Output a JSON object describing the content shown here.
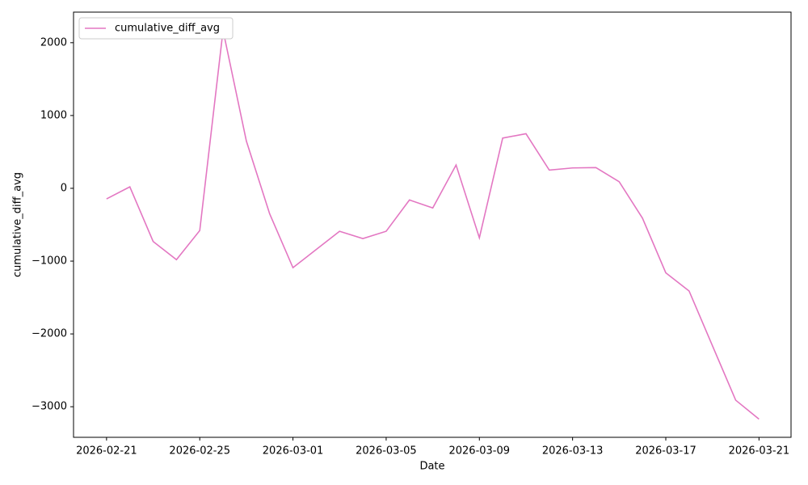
{
  "chart_data": {
    "type": "line",
    "x_label": "Date",
    "y_label": "cumulative_diff_avg",
    "x": [
      "2026-02-21",
      "2026-02-22",
      "2026-02-23",
      "2026-02-24",
      "2026-02-25",
      "2026-02-26",
      "2026-02-27",
      "2026-02-28",
      "2026-03-01",
      "2026-03-02",
      "2026-03-03",
      "2026-03-04",
      "2026-03-05",
      "2026-03-06",
      "2026-03-07",
      "2026-03-08",
      "2026-03-09",
      "2026-03-10",
      "2026-03-11",
      "2026-03-12",
      "2026-03-13",
      "2026-03-14",
      "2026-03-15",
      "2026-03-16",
      "2026-03-17",
      "2026-03-18",
      "2026-03-19",
      "2026-03-20",
      "2026-03-21"
    ],
    "series": [
      {
        "name": "cumulative_diff_avg",
        "color": "#e377c2",
        "values": [
          -145,
          20,
          -730,
          -980,
          -580,
          2170,
          650,
          -350,
          -1090,
          -840,
          -590,
          -690,
          -590,
          -160,
          -270,
          320,
          -680,
          690,
          750,
          250,
          280,
          285,
          90,
          -410,
          -1160,
          -1410,
          -2160,
          -2910,
          -3170
        ]
      }
    ],
    "xlim": [
      "2026-02-19T14:00:00",
      "2026-03-22T09:00:00"
    ],
    "xticks": [
      "2026-02-21",
      "2026-02-25",
      "2026-03-01",
      "2026-03-05",
      "2026-03-09",
      "2026-03-13",
      "2026-03-17",
      "2026-03-21"
    ],
    "ylim": [
      -3420,
      2420
    ],
    "yticks": [
      {
        "value": -3000,
        "label": "−3000"
      },
      {
        "value": -2000,
        "label": "−2000"
      },
      {
        "value": -1000,
        "label": "−1000"
      },
      0,
      1000,
      2000
    ],
    "grid": false,
    "legend": "upper left"
  }
}
